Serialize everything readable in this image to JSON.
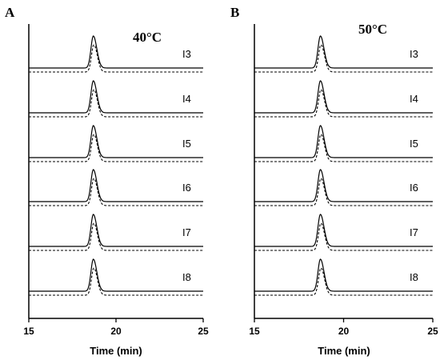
{
  "chart_data": [
    {
      "type": "line",
      "panel_label": "A",
      "annotation": "40°C",
      "xlabel": "Time (min)",
      "xlim": [
        15,
        25
      ],
      "xticks": [
        "15",
        "20",
        "25"
      ],
      "peak_time": 18.7,
      "traces": [
        {
          "label": "I3"
        },
        {
          "label": "I4"
        },
        {
          "label": "I5"
        },
        {
          "label": "I6"
        },
        {
          "label": "I7"
        },
        {
          "label": "I8"
        }
      ],
      "line_styles": [
        "solid",
        "dashed"
      ]
    },
    {
      "type": "line",
      "panel_label": "B",
      "annotation": "50°C",
      "xlabel": "Time (min)",
      "xlim": [
        15,
        25
      ],
      "xticks": [
        "15",
        "20",
        "25"
      ],
      "peak_time": 18.7,
      "traces": [
        {
          "label": "I3"
        },
        {
          "label": "I4"
        },
        {
          "label": "I5"
        },
        {
          "label": "I6"
        },
        {
          "label": "I7"
        },
        {
          "label": "I8"
        }
      ],
      "line_styles": [
        "solid",
        "dashed"
      ]
    }
  ]
}
